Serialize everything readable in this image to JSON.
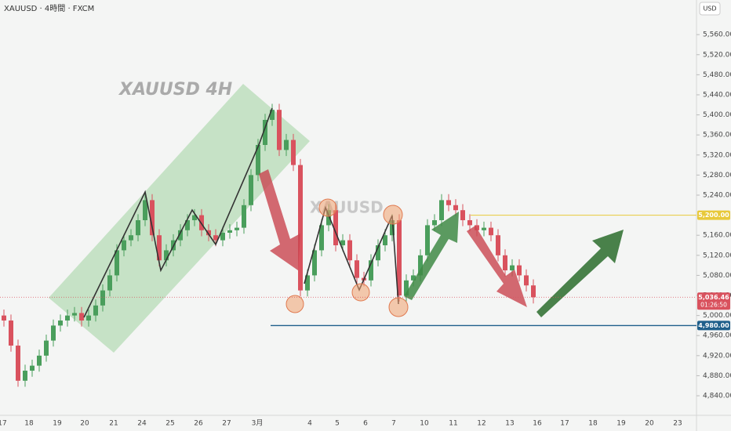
{
  "chart_data": {
    "type": "candlestick",
    "title": "XAUUSD · 4時間 · FXCM",
    "currency": "USD",
    "watermark": "XAUUSD 4H",
    "watermark2": "XAUUSD",
    "up_color": "#4a9e5c",
    "down_color": "#d9525e",
    "open": [
      5000,
      4990,
      4940,
      4870,
      4890,
      4900,
      4920,
      4950,
      4980,
      4990,
      5000,
      5005,
      4990,
      5000,
      5020,
      5050,
      5080,
      5130,
      5150,
      5160,
      5190,
      5230,
      5160,
      5110,
      5130,
      5150,
      5170,
      5190,
      5200,
      5170,
      5160,
      5150,
      5165,
      5170,
      5175,
      5220,
      5280,
      5340,
      5390,
      5410,
      5330,
      5350,
      5300,
      5050,
      5080,
      5130,
      5180,
      5210,
      5140,
      5150,
      5110,
      5075,
      5070,
      5110,
      5140,
      5160,
      5190,
      5040,
      5070,
      5080,
      5120,
      5180,
      5190,
      5230,
      5220,
      5210,
      5190,
      5180,
      5170,
      5175,
      5160,
      5120,
      5090,
      5100,
      5080,
      5060
    ],
    "high": [
      5012,
      5002,
      4952,
      4902,
      4912,
      4932,
      4962,
      4992,
      5002,
      5012,
      5017,
      5017,
      5012,
      5032,
      5062,
      5092,
      5142,
      5162,
      5172,
      5202,
      5242,
      5242,
      5172,
      5142,
      5162,
      5182,
      5202,
      5212,
      5212,
      5182,
      5172,
      5177,
      5182,
      5187,
      5232,
      5292,
      5352,
      5402,
      5422,
      5422,
      5362,
      5362,
      5312,
      5092,
      5142,
      5192,
      5222,
      5222,
      5162,
      5162,
      5122,
      5087,
      5122,
      5152,
      5172,
      5202,
      5202,
      5082,
      5092,
      5132,
      5192,
      5202,
      5242,
      5242,
      5232,
      5222,
      5202,
      5192,
      5187,
      5187,
      5172,
      5132,
      5112,
      5112,
      5092,
      5072
    ],
    "low": [
      4978,
      4928,
      4858,
      4858,
      4878,
      4888,
      4908,
      4938,
      4968,
      4978,
      4988,
      4978,
      4978,
      4988,
      5008,
      5038,
      5068,
      5118,
      5138,
      5148,
      5178,
      5148,
      5098,
      5098,
      5118,
      5138,
      5158,
      5178,
      5158,
      5148,
      5138,
      5138,
      5153,
      5158,
      5163,
      5208,
      5268,
      5328,
      5378,
      5318,
      5318,
      5288,
      5038,
      5038,
      5068,
      5118,
      5168,
      5128,
      5128,
      5098,
      5063,
      5058,
      5058,
      5098,
      5128,
      5148,
      5028,
      5028,
      5058,
      5068,
      5108,
      5168,
      5178,
      5208,
      5198,
      5178,
      5168,
      5158,
      5158,
      5148,
      5108,
      5078,
      5078,
      5068,
      5048,
      5024
    ],
    "close": [
      4990,
      4940,
      4870,
      4890,
      4900,
      4920,
      4950,
      4980,
      4990,
      5000,
      5005,
      4990,
      5000,
      5020,
      5050,
      5080,
      5130,
      5150,
      5160,
      5190,
      5230,
      5160,
      5110,
      5130,
      5150,
      5170,
      5190,
      5200,
      5170,
      5160,
      5150,
      5165,
      5170,
      5175,
      5220,
      5280,
      5340,
      5390,
      5410,
      5330,
      5350,
      5300,
      5050,
      5080,
      5130,
      5180,
      5210,
      5140,
      5150,
      5110,
      5075,
      5070,
      5110,
      5140,
      5160,
      5190,
      5040,
      5070,
      5080,
      5120,
      5180,
      5190,
      5230,
      5220,
      5210,
      5190,
      5180,
      5170,
      5175,
      5160,
      5120,
      5090,
      5100,
      5080,
      5060,
      5036.46
    ],
    "ylim": [
      4801,
      5629
    ],
    "yticks": [
      {
        "value": 4840,
        "label": "4,840.00"
      },
      {
        "value": 4880,
        "label": "4,880.00"
      },
      {
        "value": 4920,
        "label": "4,920.00"
      },
      {
        "value": 4960,
        "label": "4,960.00"
      },
      {
        "value": 5000,
        "label": "5,000.00"
      },
      {
        "value": 5040,
        "label": "5,040.00"
      },
      {
        "value": 5080,
        "label": "5,080.00"
      },
      {
        "value": 5120,
        "label": "5,120.00"
      },
      {
        "value": 5160,
        "label": "5,160.00"
      },
      {
        "value": 5240,
        "label": "5,240.00"
      },
      {
        "value": 5280,
        "label": "5,280.00"
      },
      {
        "value": 5320,
        "label": "5,320.00"
      },
      {
        "value": 5360,
        "label": "5,360.00"
      },
      {
        "value": 5400,
        "label": "5,400.00"
      },
      {
        "value": 5440,
        "label": "5,440.00"
      },
      {
        "value": 5480,
        "label": "5,480.00"
      },
      {
        "value": 5520,
        "label": "5,520.00"
      },
      {
        "value": 5560,
        "label": "5,560.00"
      }
    ],
    "xtick_labels": [
      "17",
      "18",
      "19",
      "20",
      "21",
      "24",
      "25",
      "26",
      "27",
      "3月",
      "4",
      "5",
      "6",
      "7",
      "10",
      "11",
      "12",
      "13",
      "16",
      "17",
      "18",
      "19",
      "20",
      "23"
    ],
    "levels": [
      {
        "value": 5200,
        "label": "5,200.00",
        "color": "#e8c93a"
      },
      {
        "value": 4980,
        "label": "4,980.00",
        "color": "#1f5f8b"
      }
    ],
    "last_price": {
      "value": 5036.46,
      "label": "5,036.46",
      "countdown": "01:26:50",
      "color": "#d9525e"
    }
  }
}
